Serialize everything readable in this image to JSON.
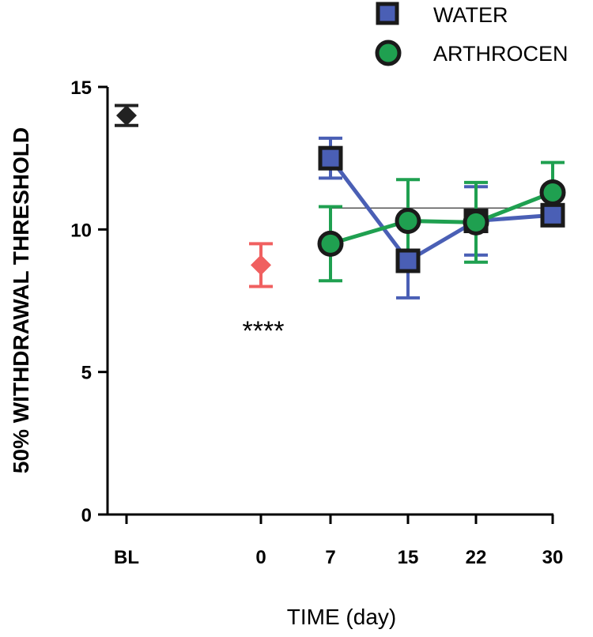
{
  "chart_data": {
    "type": "line",
    "title": "",
    "xlabel": "TIME (day)",
    "ylabel": "50% WITHDRAWAL THRESHOLD",
    "ylim": [
      0,
      15
    ],
    "yticks": [
      0,
      5,
      10,
      15
    ],
    "categories": [
      "BL",
      "0",
      "7",
      "15",
      "22",
      "30"
    ],
    "baseline": {
      "name": "BL",
      "x": "BL",
      "value": 14.0,
      "err": 0.35,
      "color": "#222222"
    },
    "day0": {
      "name": "0",
      "x": "0",
      "value": 8.75,
      "err": 0.75,
      "color": "#F06060"
    },
    "reference_line": {
      "value": 10.75,
      "from": "7",
      "to": "30"
    },
    "series": [
      {
        "name": "WATER",
        "marker": "square",
        "color": "#4A5FB5",
        "x": [
          "7",
          "15",
          "22",
          "30"
        ],
        "values": [
          12.5,
          8.9,
          10.3,
          10.5
        ],
        "err": [
          0.7,
          1.3,
          1.2,
          0.25
        ]
      },
      {
        "name": "ARTHROCEN",
        "marker": "circle",
        "color": "#1FA050",
        "x": [
          "7",
          "15",
          "22",
          "30"
        ],
        "values": [
          9.5,
          10.3,
          10.25,
          11.3
        ],
        "err": [
          1.3,
          1.45,
          1.4,
          1.05
        ]
      }
    ],
    "legend": {
      "position": "top-right",
      "entries": [
        "WATER",
        "ARTHROCEN"
      ]
    },
    "annotations": [
      {
        "text": "****",
        "at": "0"
      }
    ]
  }
}
